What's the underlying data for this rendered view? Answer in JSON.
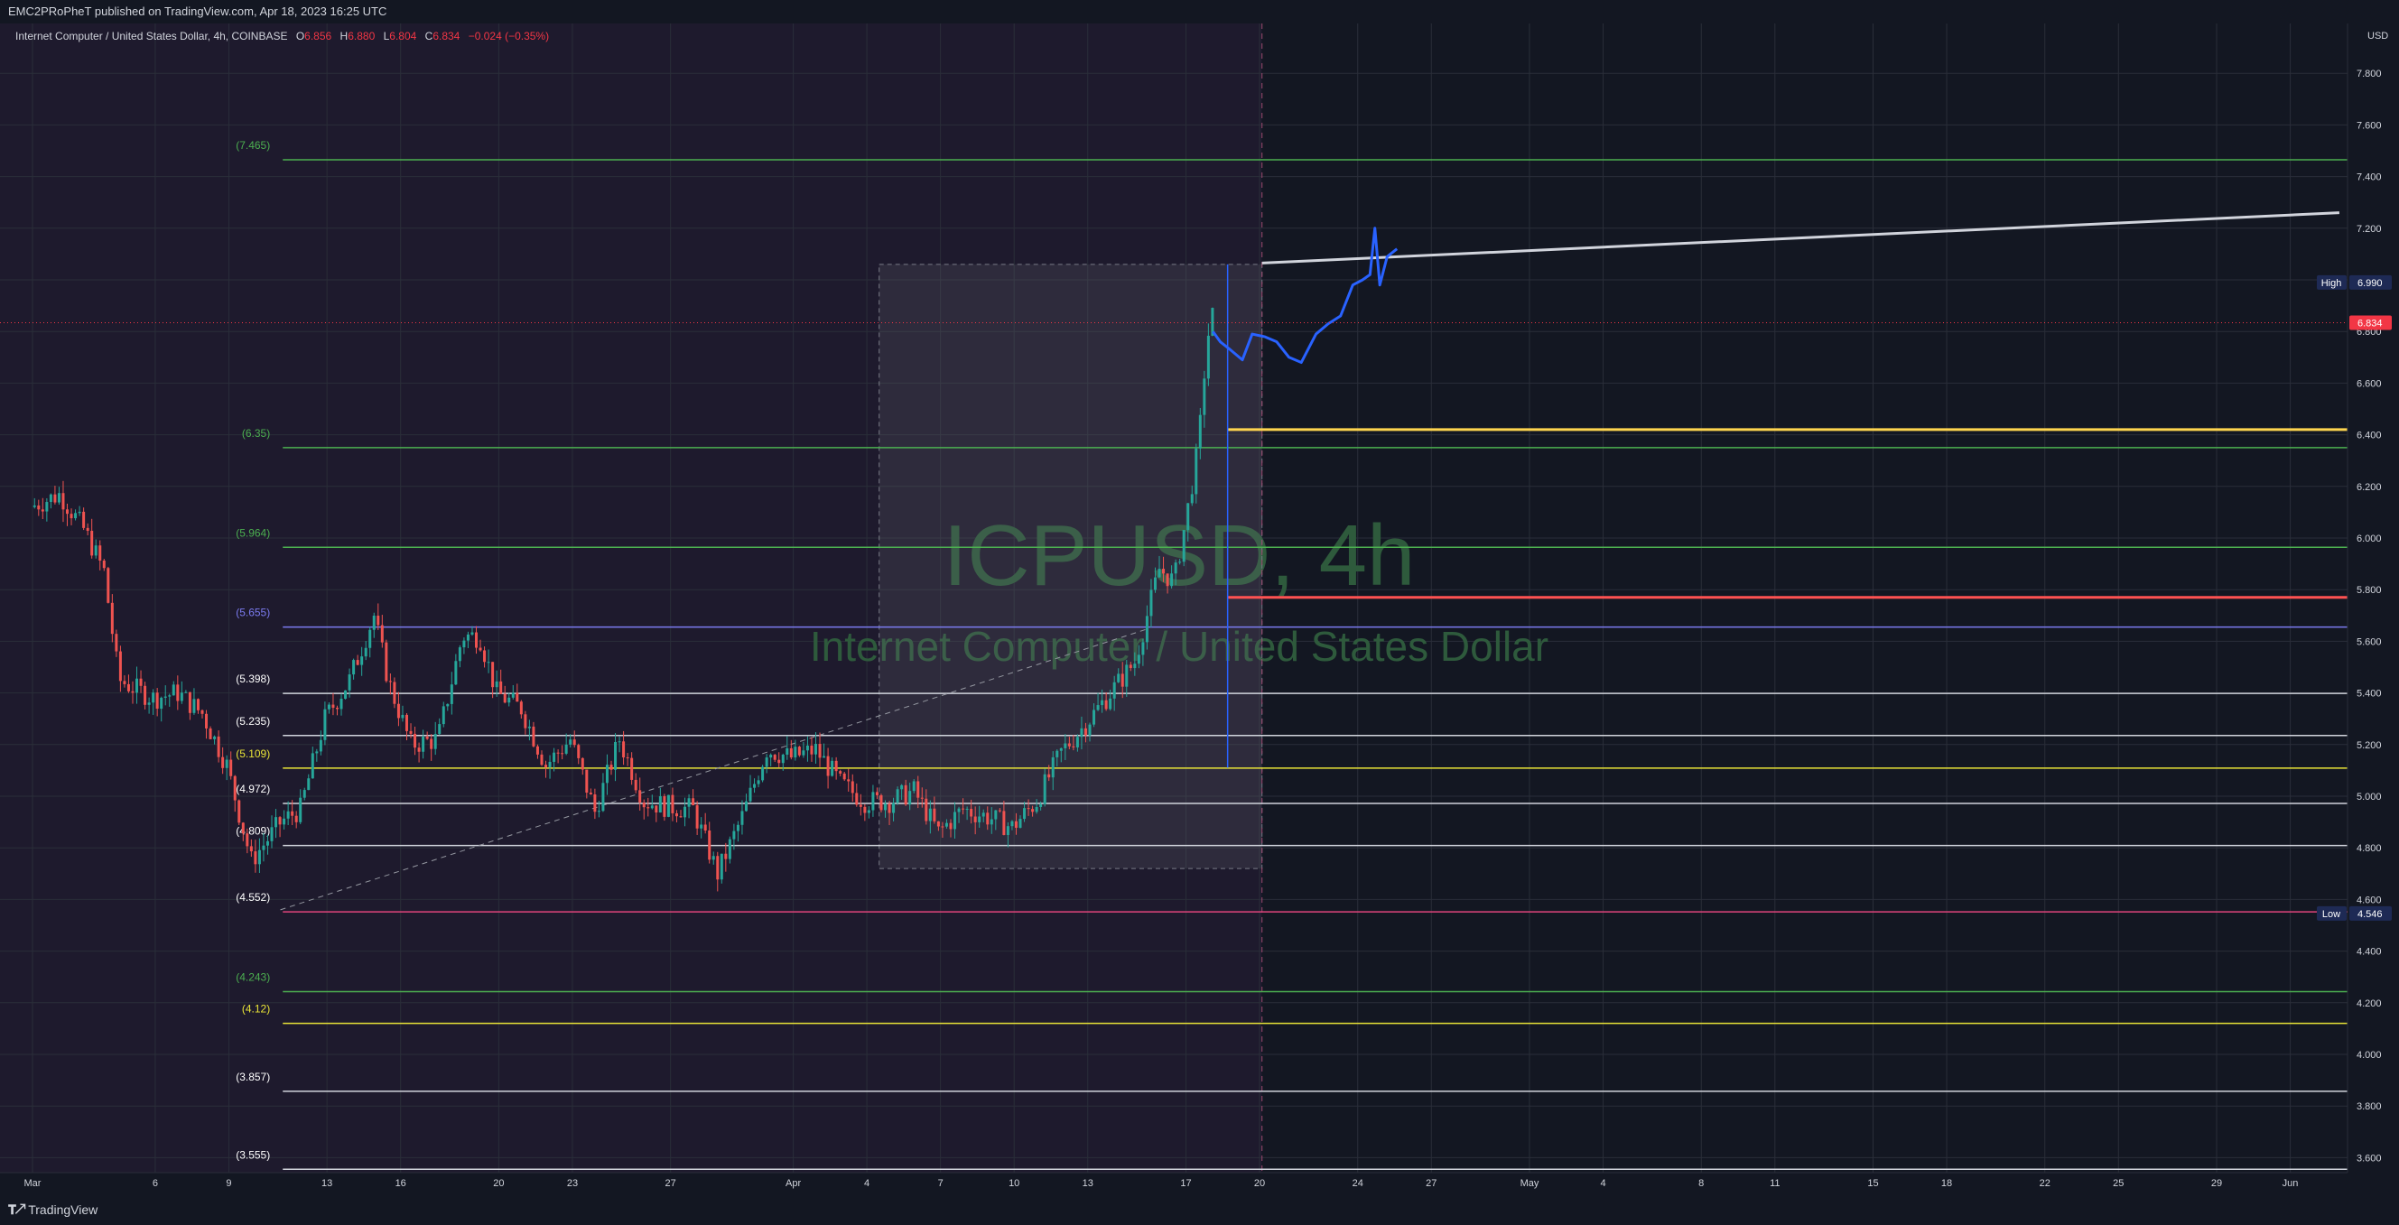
{
  "header": {
    "published": "EMC2PRoPheT published on TradingView.com, Apr 18, 2023 16:25 UTC"
  },
  "legend": {
    "symbol": "Internet Computer / United States Dollar, 4h, COINBASE",
    "o_label": "O",
    "o": "6.856",
    "h_label": "H",
    "h": "6.880",
    "l_label": "L",
    "l": "6.804",
    "c_label": "C",
    "c": "6.834",
    "change": "−0.024 (−0.35%)"
  },
  "footer": {
    "logo": "TradingView"
  },
  "watermark": {
    "title": "ICPUSD, 4h",
    "subtitle": "Internet Computer / United States Dollar"
  },
  "colors": {
    "background": "#131722",
    "history_shade": "#1e1a2d",
    "up": "#26a69a",
    "down": "#ef5350",
    "fib_green": "#4caf50",
    "fib_yellow": "#e8e337",
    "fib_white": "#d1d4dc",
    "fib_blue": "#7b7bf0",
    "fib_pink": "#e0457b",
    "projection": "#2962ff",
    "watermark": "#2e5a3c"
  },
  "chart_data": {
    "type": "candlestick",
    "symbol": "ICPUSD",
    "interval": "4h",
    "exchange": "COINBASE",
    "y_axis": {
      "unit": "USD",
      "range": [
        3.5,
        7.95
      ],
      "ticks": [
        "7.800",
        "7.600",
        "7.400",
        "7.200",
        "7.000",
        "6.800",
        "6.600",
        "6.400",
        "6.200",
        "6.000",
        "5.800",
        "5.600",
        "5.400",
        "5.200",
        "5.000",
        "4.800",
        "4.600",
        "4.400",
        "4.200",
        "4.000",
        "3.800",
        "3.600"
      ]
    },
    "x_axis": {
      "ticks": [
        {
          "label": "Mar",
          "day": 0
        },
        {
          "label": "6",
          "day": 5
        },
        {
          "label": "9",
          "day": 8
        },
        {
          "label": "13",
          "day": 12
        },
        {
          "label": "16",
          "day": 15
        },
        {
          "label": "20",
          "day": 19
        },
        {
          "label": "23",
          "day": 22
        },
        {
          "label": "27",
          "day": 26
        },
        {
          "label": "Apr",
          "day": 31
        },
        {
          "label": "4",
          "day": 34
        },
        {
          "label": "7",
          "day": 37
        },
        {
          "label": "10",
          "day": 40
        },
        {
          "label": "13",
          "day": 43
        },
        {
          "label": "17",
          "day": 47
        },
        {
          "label": "20",
          "day": 50
        },
        {
          "label": "24",
          "day": 54
        },
        {
          "label": "27",
          "day": 57
        },
        {
          "label": "May",
          "day": 61
        },
        {
          "label": "4",
          "day": 64
        },
        {
          "label": "8",
          "day": 68
        },
        {
          "label": "11",
          "day": 71
        },
        {
          "label": "15",
          "day": 75
        },
        {
          "label": "18",
          "day": 78
        },
        {
          "label": "22",
          "day": 82
        },
        {
          "label": "25",
          "day": 85
        },
        {
          "label": "29",
          "day": 89
        },
        {
          "label": "Jun",
          "day": 92
        }
      ]
    },
    "price_path": [
      [
        0,
        6.12
      ],
      [
        1.2,
        6.17
      ],
      [
        2.2,
        6.03
      ],
      [
        3,
        5.87
      ],
      [
        3.6,
        5.45
      ],
      [
        5,
        5.38
      ],
      [
        6,
        5.4
      ],
      [
        7,
        5.32
      ],
      [
        8,
        5.12
      ],
      [
        9,
        4.75
      ],
      [
        10.2,
        4.9
      ],
      [
        11,
        4.95
      ],
      [
        12,
        5.3
      ],
      [
        13,
        5.45
      ],
      [
        14,
        5.7
      ],
      [
        14.6,
        5.44
      ],
      [
        15.5,
        5.2
      ],
      [
        16.6,
        5.22
      ],
      [
        17.6,
        5.62
      ],
      [
        18.3,
        5.62
      ],
      [
        19,
        5.4
      ],
      [
        20,
        5.34
      ],
      [
        21,
        5.12
      ],
      [
        22,
        5.22
      ],
      [
        23,
        4.94
      ],
      [
        24,
        5.22
      ],
      [
        25,
        4.98
      ],
      [
        26,
        4.96
      ],
      [
        27,
        4.95
      ],
      [
        28,
        4.7
      ],
      [
        29,
        4.92
      ],
      [
        30,
        5.18
      ],
      [
        31,
        5.15
      ],
      [
        32,
        5.18
      ],
      [
        33,
        5.05
      ],
      [
        34,
        4.98
      ],
      [
        35,
        4.98
      ],
      [
        36,
        5.02
      ],
      [
        37,
        4.86
      ],
      [
        38,
        4.95
      ],
      [
        39,
        4.92
      ],
      [
        40,
        4.88
      ],
      [
        41,
        4.98
      ],
      [
        42,
        5.17
      ],
      [
        43,
        5.28
      ],
      [
        44,
        5.4
      ],
      [
        45,
        5.52
      ],
      [
        46,
        5.88
      ],
      [
        46.6,
        5.83
      ],
      [
        47.1,
        6.08
      ],
      [
        47.6,
        6.36
      ],
      [
        47.9,
        6.72
      ],
      [
        48.1,
        6.86
      ]
    ],
    "projection": {
      "color": "#2962ff",
      "path": [
        [
          48.1,
          6.8
        ],
        [
          48.4,
          6.76
        ],
        [
          48.8,
          6.73
        ],
        [
          49.3,
          6.69
        ],
        [
          49.7,
          6.79
        ],
        [
          50.2,
          6.78
        ],
        [
          50.7,
          6.76
        ],
        [
          51.2,
          6.7
        ],
        [
          51.7,
          6.68
        ],
        [
          52.3,
          6.79
        ],
        [
          52.8,
          6.83
        ],
        [
          53.3,
          6.86
        ],
        [
          53.8,
          6.98
        ],
        [
          54.2,
          7.0
        ],
        [
          54.5,
          7.02
        ],
        [
          54.7,
          7.2
        ],
        [
          54.9,
          6.98
        ],
        [
          55.2,
          7.09
        ],
        [
          55.6,
          7.12
        ]
      ]
    },
    "trendline": {
      "color": "#d1d4dc",
      "from": [
        50.1,
        7.065
      ],
      "to": [
        94,
        7.26
      ]
    },
    "dashed_diagonal": [
      [
        10.1,
        4.56
      ],
      [
        45.5,
        5.65
      ]
    ],
    "selection_box": {
      "day_from": 34.5,
      "day_to": 50.1,
      "price_low": 4.72,
      "price_high": 7.06
    },
    "vertical_marker_day": 50.1,
    "fib_levels": [
      {
        "label": "(7.465)",
        "price": 7.465,
        "color": "#4caf50",
        "label_color": "#4caf50"
      },
      {
        "label": "(6.35)",
        "price": 6.35,
        "color": "#4caf50",
        "label_color": "#4caf50"
      },
      {
        "label": "(5.964)",
        "price": 5.964,
        "color": "#4caf50",
        "label_color": "#4caf50"
      },
      {
        "label": "(5.655)",
        "price": 5.655,
        "color": "#7b7bf0",
        "label_color": "#7b7bf0"
      },
      {
        "label": "(5.398)",
        "price": 5.398,
        "color": "#d1d4dc",
        "label_color": "#ffffff"
      },
      {
        "label": "(5.235)",
        "price": 5.235,
        "color": "#d1d4dc",
        "label_color": "#ffffff"
      },
      {
        "label": "(5.109)",
        "price": 5.109,
        "color": "#e8e337",
        "label_color": "#e8e337"
      },
      {
        "label": "(4.972)",
        "price": 4.972,
        "color": "#d1d4dc",
        "label_color": "#ffffff"
      },
      {
        "label": "(4.809)",
        "price": 4.809,
        "color": "#d1d4dc",
        "label_color": "#ffffff"
      },
      {
        "label": "(4.552)",
        "price": 4.552,
        "color": "#e0457b",
        "label_color": "#ffffff"
      },
      {
        "label": "(4.243)",
        "price": 4.243,
        "color": "#4caf50",
        "label_color": "#4caf50"
      },
      {
        "label": "(4.12)",
        "price": 4.12,
        "color": "#e8e337",
        "label_color": "#e8e337"
      },
      {
        "label": "(3.857)",
        "price": 3.857,
        "color": "#d1d4dc",
        "label_color": "#ffffff"
      },
      {
        "label": "(3.555)",
        "price": 3.555,
        "color": "#d1d4dc",
        "label_color": "#ffffff"
      }
    ],
    "horizontal_rays": [
      {
        "price": 6.42,
        "color": "#ffd54f",
        "from_day": 48.7
      },
      {
        "price": 5.77,
        "color": "#ff5252",
        "from_day": 48.7
      }
    ],
    "price_labels": [
      {
        "tag": "High",
        "value": "6.990",
        "price": 6.99,
        "color": "#1e2a55"
      },
      {
        "tag": "",
        "value": "6.834",
        "price": 6.834,
        "color": "#f23645"
      },
      {
        "tag": "Low",
        "value": "4.546",
        "price": 4.546,
        "color": "#1e2a55"
      }
    ],
    "last_price": 6.834
  }
}
